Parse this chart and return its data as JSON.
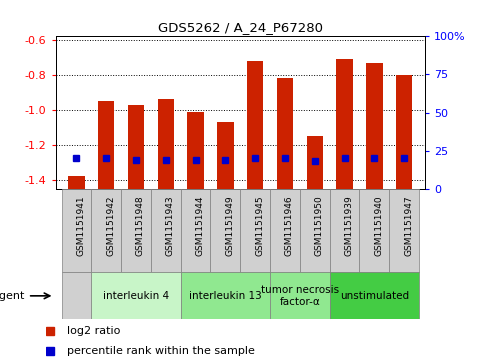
{
  "title": "GDS5262 / A_24_P67280",
  "samples": [
    "GSM1151941",
    "GSM1151942",
    "GSM1151948",
    "GSM1151943",
    "GSM1151944",
    "GSM1151949",
    "GSM1151945",
    "GSM1151946",
    "GSM1151950",
    "GSM1151939",
    "GSM1151940",
    "GSM1151947"
  ],
  "log2_ratio": [
    -1.38,
    -0.95,
    -0.97,
    -0.94,
    -1.01,
    -1.07,
    -0.72,
    -0.82,
    -1.15,
    -0.71,
    -0.73,
    -0.8
  ],
  "percentile_rank": [
    20,
    20,
    19,
    19,
    19,
    19,
    20,
    20,
    18,
    20,
    20,
    20
  ],
  "groups_data": [
    {
      "label": "interleukin 4",
      "indices": [
        1,
        2,
        3
      ],
      "color": "#c8f5c8"
    },
    {
      "label": "interleukin 13",
      "indices": [
        4,
        5,
        6
      ],
      "color": "#90e890"
    },
    {
      "label": "tumor necrosis\nfactor-α",
      "indices": [
        7,
        8
      ],
      "color": "#90e890"
    },
    {
      "label": "unstimulated",
      "indices": [
        9,
        10,
        11
      ],
      "color": "#44cc44"
    }
  ],
  "ylim_left": [
    -1.45,
    -0.58
  ],
  "ylim_right": [
    0,
    100
  ],
  "yticks_left": [
    -1.4,
    -1.2,
    -1.0,
    -0.8,
    -0.6
  ],
  "yticks_right": [
    0,
    25,
    50,
    75,
    100
  ],
  "bar_color": "#cc2200",
  "marker_color": "#0000cc",
  "plot_bg": "#ffffff",
  "sample_box_color": "#d0d0d0",
  "legend_red": "log2 ratio",
  "legend_blue": "percentile rank within the sample",
  "agent_label": "agent"
}
